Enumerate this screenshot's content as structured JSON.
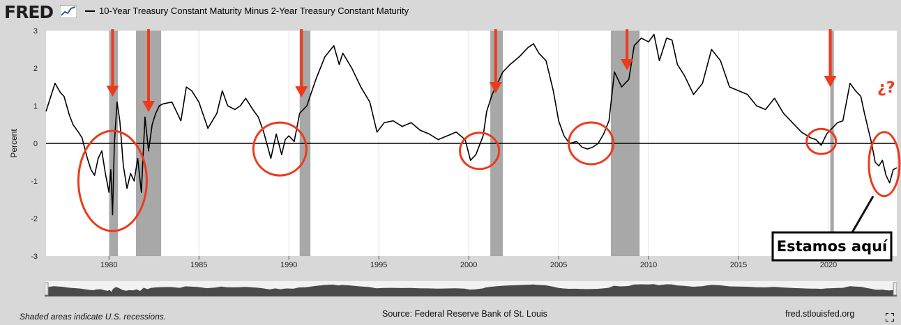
{
  "header": {
    "logo_text": "FRED",
    "legend_label": "10-Year Treasury Constant Maturity Minus 2-Year Treasury Constant Maturity"
  },
  "footer": {
    "note": "Shaded areas indicate U.S. recessions.",
    "source": "Source: Federal Reserve Bank of St. Louis",
    "url": "fred.stlouisfed.org"
  },
  "annotations": {
    "callout_text": "Estamos aquí",
    "question_text": "¿?",
    "arrow_years": [
      1980.2,
      1982.2,
      1990.7,
      2001.5,
      2008.8,
      2020.1
    ],
    "circles": [
      {
        "year": 1980.2,
        "value": -1.0
      },
      {
        "year": 1989.5,
        "value": -0.15
      },
      {
        "year": 2000.6,
        "value": -0.2
      },
      {
        "year": 2006.8,
        "value": 0.0
      },
      {
        "year": 2019.6,
        "value": 0.05
      },
      {
        "year": 2023.1,
        "value": -0.55
      }
    ],
    "color": "#ee3a1c"
  },
  "chart_data": {
    "type": "line",
    "title": "10-Year Treasury Constant Maturity Minus 2-Year Treasury Constant Maturity",
    "xlabel": "",
    "ylabel": "Percent",
    "xlim": [
      1976.5,
      2023.8
    ],
    "ylim": [
      -3,
      3
    ],
    "xticks": [
      1980,
      1985,
      1990,
      1995,
      2000,
      2005,
      2010,
      2015,
      2020
    ],
    "yticks": [
      -3,
      -2,
      -1,
      0,
      1,
      2,
      3
    ],
    "grid": "vertical",
    "recessions": [
      [
        1980.0,
        1980.5
      ],
      [
        1981.5,
        1982.9
      ],
      [
        1990.6,
        1991.2
      ],
      [
        2001.2,
        2001.9
      ],
      [
        2007.9,
        2009.5
      ],
      [
        2020.1,
        2020.3
      ]
    ],
    "colors": {
      "line": "#000000",
      "recession": "#a8a8a8",
      "zero_line": "#000000"
    },
    "series": [
      {
        "name": "10-Year Treasury Constant Maturity Minus 2-Year Treasury Constant Maturity",
        "x": [
          1976.5,
          1976.8,
          1977.0,
          1977.3,
          1977.5,
          1977.8,
          1978.0,
          1978.3,
          1978.5,
          1978.8,
          1979.0,
          1979.2,
          1979.4,
          1979.6,
          1979.8,
          1980.0,
          1980.1,
          1980.2,
          1980.3,
          1980.45,
          1980.6,
          1980.8,
          1981.0,
          1981.2,
          1981.4,
          1981.6,
          1981.8,
          1982.0,
          1982.2,
          1982.4,
          1982.6,
          1982.8,
          1983.0,
          1983.5,
          1984.0,
          1984.3,
          1984.6,
          1985.0,
          1985.5,
          1986.0,
          1986.3,
          1986.6,
          1987.0,
          1987.3,
          1987.6,
          1988.0,
          1988.3,
          1988.6,
          1989.0,
          1989.3,
          1989.6,
          1989.8,
          1990.0,
          1990.3,
          1990.6,
          1991.0,
          1991.5,
          1992.0,
          1992.5,
          1992.8,
          1993.0,
          1993.5,
          1994.0,
          1994.5,
          1994.9,
          1995.3,
          1995.8,
          1996.3,
          1996.8,
          1997.3,
          1997.8,
          1998.3,
          1998.8,
          1999.3,
          1999.8,
          2000.1,
          2000.4,
          2000.8,
          2001.0,
          2001.3,
          2001.6,
          2001.9,
          2002.3,
          2002.8,
          2003.3,
          2003.6,
          2003.9,
          2004.3,
          2004.7,
          2005.0,
          2005.3,
          2005.6,
          2006.0,
          2006.3,
          2006.6,
          2006.9,
          2007.2,
          2007.5,
          2007.8,
          2008.1,
          2008.5,
          2008.9,
          2009.2,
          2009.6,
          2010.0,
          2010.3,
          2010.6,
          2011.0,
          2011.3,
          2011.6,
          2012.0,
          2012.5,
          2013.0,
          2013.5,
          2014.0,
          2014.5,
          2015.0,
          2015.5,
          2016.0,
          2016.5,
          2017.0,
          2017.5,
          2018.0,
          2018.5,
          2019.0,
          2019.3,
          2019.6,
          2019.9,
          2020.2,
          2020.5,
          2020.8,
          2021.0,
          2021.2,
          2021.5,
          2021.8,
          2022.0,
          2022.2,
          2022.4,
          2022.6,
          2022.8,
          2023.0,
          2023.2,
          2023.4,
          2023.6,
          2023.8
        ],
        "values": [
          0.85,
          1.3,
          1.6,
          1.35,
          1.25,
          0.75,
          0.5,
          0.3,
          0.15,
          -0.4,
          -0.7,
          -0.85,
          -0.4,
          -0.2,
          -0.8,
          -1.3,
          -0.7,
          -1.9,
          0.0,
          1.1,
          0.6,
          -0.6,
          -1.2,
          -0.8,
          -1.0,
          -0.4,
          -1.3,
          0.7,
          -0.2,
          0.5,
          0.8,
          1.0,
          1.05,
          1.1,
          0.6,
          1.5,
          1.4,
          1.1,
          0.4,
          0.8,
          1.4,
          1.0,
          0.9,
          1.0,
          1.2,
          0.9,
          0.7,
          0.3,
          -0.4,
          0.25,
          -0.3,
          0.1,
          0.2,
          0.05,
          0.8,
          1.0,
          1.7,
          2.3,
          2.6,
          2.1,
          2.4,
          2.0,
          1.5,
          1.1,
          0.3,
          0.55,
          0.6,
          0.45,
          0.55,
          0.35,
          0.25,
          0.1,
          0.2,
          0.3,
          0.1,
          -0.45,
          -0.3,
          0.2,
          0.85,
          1.3,
          1.6,
          1.9,
          2.1,
          2.3,
          2.55,
          2.65,
          2.4,
          2.2,
          1.4,
          0.6,
          0.2,
          0.0,
          0.05,
          -0.1,
          -0.15,
          -0.1,
          0.0,
          0.25,
          0.6,
          1.9,
          1.5,
          1.7,
          2.6,
          2.8,
          2.7,
          2.9,
          2.2,
          2.8,
          2.75,
          2.1,
          1.8,
          1.3,
          1.6,
          2.5,
          2.2,
          1.5,
          1.4,
          1.3,
          1.0,
          0.9,
          1.2,
          0.8,
          0.55,
          0.3,
          0.15,
          0.1,
          -0.05,
          0.25,
          0.4,
          0.55,
          0.6,
          1.1,
          1.6,
          1.4,
          1.25,
          0.8,
          0.4,
          0.0,
          -0.5,
          -0.6,
          -0.45,
          -0.85,
          -1.05,
          -0.7,
          -0.65
        ]
      }
    ]
  }
}
